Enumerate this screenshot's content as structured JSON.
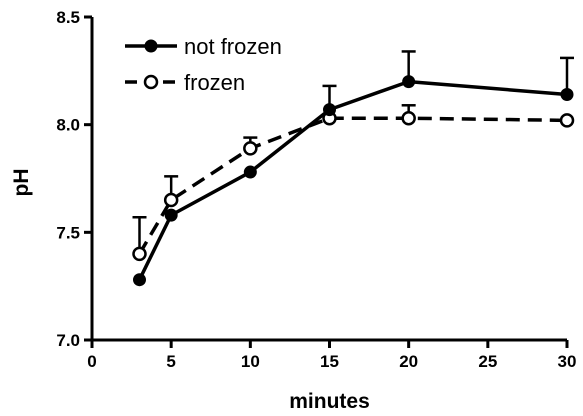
{
  "chart_data": {
    "type": "line",
    "title": "",
    "xlabel": "minutes",
    "ylabel": "pH",
    "xlim": [
      0,
      30
    ],
    "ylim": [
      7.0,
      8.5
    ],
    "x_ticks": [
      0,
      5,
      10,
      15,
      20,
      25,
      30
    ],
    "y_ticks": [
      "7.0",
      "7.5",
      "8.0",
      "8.5"
    ],
    "grid": false,
    "legend_position": "top-left",
    "series": [
      {
        "name": "not frozen",
        "style": "solid",
        "marker": "filled-circle",
        "color": "#000000",
        "x": [
          3,
          5,
          10,
          15,
          20,
          30
        ],
        "y": [
          7.28,
          7.58,
          7.78,
          8.07,
          8.2,
          8.14
        ],
        "error": [
          0.0,
          0.0,
          0.0,
          0.11,
          0.14,
          0.17
        ]
      },
      {
        "name": "frozen",
        "style": "dashed",
        "marker": "open-circle",
        "color": "#000000",
        "x": [
          3,
          5,
          10,
          15,
          20,
          30
        ],
        "y": [
          7.4,
          7.65,
          7.89,
          8.03,
          8.03,
          8.02
        ],
        "error": [
          0.17,
          0.11,
          0.05,
          0.0,
          0.06,
          0.0
        ]
      }
    ]
  }
}
